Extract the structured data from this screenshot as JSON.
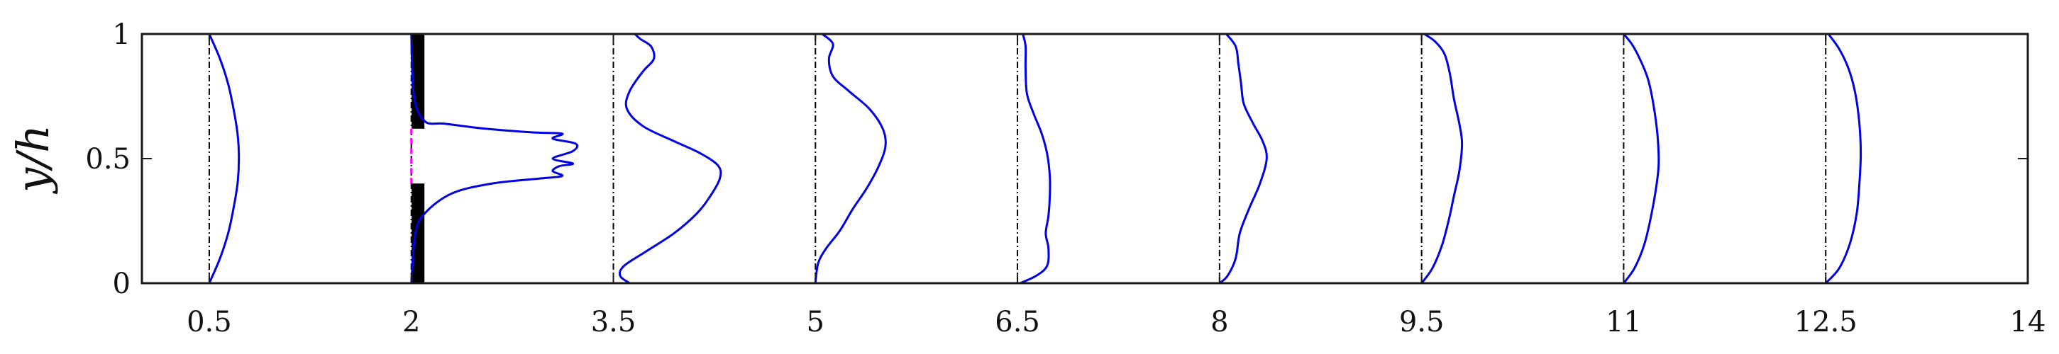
{
  "chart_data": {
    "type": "line",
    "title": "",
    "xlabel": "",
    "ylabel": "y/h",
    "xlim": [
      0,
      14
    ],
    "ylim": [
      0,
      1
    ],
    "x_ticks": [
      "0.5",
      "2",
      "3.5",
      "5",
      "6.5",
      "8",
      "9.5",
      "11",
      "12.5",
      "14"
    ],
    "y_ticks": [
      "0",
      "0.5",
      "1"
    ],
    "grid": false,
    "legend": "none",
    "colors": {
      "profile": "#0000e6",
      "baseline": "#000000",
      "obstacle": "#000000",
      "gap_marker": "#ff00ff"
    },
    "obstacle": {
      "x": 2.05,
      "y_segments": [
        [
          0,
          0.4
        ],
        [
          0.62,
          1
        ]
      ]
    },
    "series": [
      {
        "x0": 0.5,
        "points": [
          [
            0.5,
            0
          ],
          [
            0.58,
            0.1
          ],
          [
            0.64,
            0.2
          ],
          [
            0.68,
            0.3
          ],
          [
            0.71,
            0.4
          ],
          [
            0.72,
            0.5
          ],
          [
            0.71,
            0.6
          ],
          [
            0.68,
            0.7
          ],
          [
            0.64,
            0.8
          ],
          [
            0.58,
            0.9
          ],
          [
            0.5,
            1
          ]
        ]
      },
      {
        "x0": 2.0,
        "points": [
          [
            2.0,
            0
          ],
          [
            2.03,
            0.2
          ],
          [
            2.1,
            0.28
          ],
          [
            2.3,
            0.36
          ],
          [
            2.6,
            0.4
          ],
          [
            2.95,
            0.42
          ],
          [
            3.12,
            0.43
          ],
          [
            3.05,
            0.45
          ],
          [
            3.1,
            0.47
          ],
          [
            3.2,
            0.48
          ],
          [
            3.05,
            0.5
          ],
          [
            3.2,
            0.53
          ],
          [
            3.22,
            0.56
          ],
          [
            3.05,
            0.58
          ],
          [
            3.12,
            0.6
          ],
          [
            2.9,
            0.605
          ],
          [
            2.55,
            0.62
          ],
          [
            2.25,
            0.64
          ],
          [
            2.1,
            0.65
          ],
          [
            2.02,
            0.75
          ],
          [
            2.0,
            1
          ]
        ]
      },
      {
        "x0": 3.5,
        "points": [
          [
            3.62,
            0
          ],
          [
            3.55,
            0.03
          ],
          [
            3.58,
            0.07
          ],
          [
            3.75,
            0.13
          ],
          [
            3.95,
            0.2
          ],
          [
            4.12,
            0.28
          ],
          [
            4.22,
            0.35
          ],
          [
            4.29,
            0.42
          ],
          [
            4.28,
            0.47
          ],
          [
            4.15,
            0.52
          ],
          [
            3.95,
            0.57
          ],
          [
            3.72,
            0.63
          ],
          [
            3.6,
            0.7
          ],
          [
            3.62,
            0.77
          ],
          [
            3.72,
            0.85
          ],
          [
            3.8,
            0.9
          ],
          [
            3.78,
            0.95
          ],
          [
            3.7,
            0.98
          ],
          [
            3.66,
            1
          ]
        ]
      },
      {
        "x0": 5.0,
        "points": [
          [
            5.0,
            0
          ],
          [
            5.02,
            0.08
          ],
          [
            5.08,
            0.14
          ],
          [
            5.18,
            0.21
          ],
          [
            5.28,
            0.3
          ],
          [
            5.38,
            0.38
          ],
          [
            5.47,
            0.47
          ],
          [
            5.52,
            0.55
          ],
          [
            5.5,
            0.62
          ],
          [
            5.4,
            0.7
          ],
          [
            5.25,
            0.77
          ],
          [
            5.13,
            0.83
          ],
          [
            5.1,
            0.9
          ],
          [
            5.13,
            0.96
          ],
          [
            5.05,
            1
          ]
        ]
      },
      {
        "x0": 6.5,
        "points": [
          [
            6.52,
            0
          ],
          [
            6.64,
            0.03
          ],
          [
            6.72,
            0.07
          ],
          [
            6.73,
            0.14
          ],
          [
            6.71,
            0.2
          ],
          [
            6.73,
            0.27
          ],
          [
            6.74,
            0.35
          ],
          [
            6.74,
            0.43
          ],
          [
            6.72,
            0.52
          ],
          [
            6.68,
            0.6
          ],
          [
            6.62,
            0.68
          ],
          [
            6.57,
            0.76
          ],
          [
            6.56,
            0.86
          ],
          [
            6.56,
            0.95
          ],
          [
            6.54,
            1
          ]
        ]
      },
      {
        "x0": 8.0,
        "points": [
          [
            8.0,
            0
          ],
          [
            8.06,
            0.03
          ],
          [
            8.12,
            0.1
          ],
          [
            8.15,
            0.2
          ],
          [
            8.22,
            0.3
          ],
          [
            8.3,
            0.4
          ],
          [
            8.35,
            0.5
          ],
          [
            8.32,
            0.57
          ],
          [
            8.25,
            0.64
          ],
          [
            8.18,
            0.72
          ],
          [
            8.16,
            0.8
          ],
          [
            8.14,
            0.88
          ],
          [
            8.12,
            0.95
          ],
          [
            8.05,
            1
          ]
        ]
      },
      {
        "x0": 9.5,
        "points": [
          [
            9.5,
            0
          ],
          [
            9.58,
            0.06
          ],
          [
            9.65,
            0.15
          ],
          [
            9.7,
            0.25
          ],
          [
            9.74,
            0.35
          ],
          [
            9.78,
            0.45
          ],
          [
            9.8,
            0.56
          ],
          [
            9.78,
            0.64
          ],
          [
            9.74,
            0.74
          ],
          [
            9.71,
            0.84
          ],
          [
            9.67,
            0.92
          ],
          [
            9.6,
            0.97
          ],
          [
            9.52,
            1
          ]
        ]
      },
      {
        "x0": 11.0,
        "points": [
          [
            11.0,
            0
          ],
          [
            11.08,
            0.06
          ],
          [
            11.15,
            0.15
          ],
          [
            11.2,
            0.26
          ],
          [
            11.24,
            0.38
          ],
          [
            11.26,
            0.48
          ],
          [
            11.25,
            0.6
          ],
          [
            11.22,
            0.72
          ],
          [
            11.18,
            0.82
          ],
          [
            11.12,
            0.9
          ],
          [
            11.06,
            0.96
          ],
          [
            11.0,
            1
          ]
        ]
      },
      {
        "x0": 12.5,
        "points": [
          [
            12.5,
            0
          ],
          [
            12.6,
            0.06
          ],
          [
            12.68,
            0.16
          ],
          [
            12.73,
            0.28
          ],
          [
            12.75,
            0.4
          ],
          [
            12.76,
            0.52
          ],
          [
            12.75,
            0.64
          ],
          [
            12.72,
            0.76
          ],
          [
            12.67,
            0.86
          ],
          [
            12.6,
            0.94
          ],
          [
            12.52,
            1
          ]
        ]
      }
    ]
  }
}
